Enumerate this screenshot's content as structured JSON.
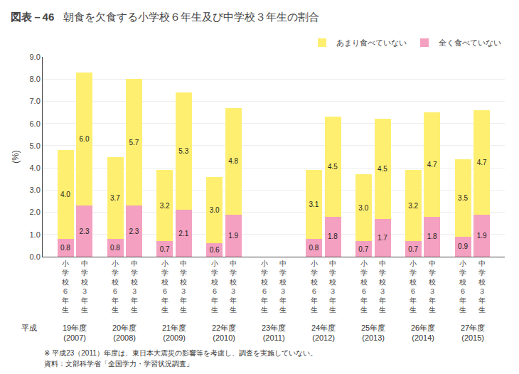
{
  "chart_data": {
    "type": "bar",
    "title": "朝食を欠食する小学校６年生及び中学校３年生の割合",
    "ylabel": "(%)",
    "categories": [
      [
        "19年度\n(2007)",
        "小\n学\n校\n６\n年\n生"
      ],
      [
        "19年度\n(2007)",
        "中\n学\n校\n３\n年\n生"
      ],
      [
        "20年度\n(2008)",
        "小\n学\n校\n６\n年\n生"
      ],
      [
        "20年度\n(2008)",
        "中\n学\n校\n３\n年\n生"
      ],
      [
        "21年度\n(2009)",
        "小\n学\n校\n６\n年\n生"
      ],
      [
        "21年度\n(2009)",
        "中\n学\n校\n３\n年\n生"
      ],
      [
        "22年度\n(2010)",
        "小\n学\n校\n６\n年\n生"
      ],
      [
        "22年度\n(2010)",
        "中\n学\n校\n３\n年\n生"
      ],
      [
        "23年度\n(2011)",
        "小\n学\n校\n６\n年\n生"
      ],
      [
        "23年度\n(2011)",
        "中\n学\n校\n３\n年\n生"
      ],
      [
        "24年度\n(2012)",
        "小\n学\n校\n６\n年\n生"
      ],
      [
        "24年度\n(2012)",
        "中\n学\n校\n３\n年\n生"
      ],
      [
        "25年度\n(2013)",
        "小\n学\n校\n６\n年\n生"
      ],
      [
        "25年度\n(2013)",
        "中\n学\n校\n３\n年\n生"
      ],
      [
        "26年度\n(2014)",
        "小\n学\n校\n６\n年\n生"
      ],
      [
        "26年度\n(2014)",
        "中\n学\n校\n３\n年\n生"
      ],
      [
        "27年度\n(2015)",
        "小\n学\n校\n６\n年\n生"
      ],
      [
        "27年度\n(2015)",
        "中\n学\n校\n３\n年\n生"
      ]
    ],
    "series": [
      {
        "name": "全く食べていない",
        "color": "#F4A0C0",
        "values": [
          0.8,
          2.3,
          0.8,
          2.3,
          0.7,
          2.1,
          0.6,
          1.9,
          null,
          null,
          0.8,
          1.8,
          0.7,
          1.7,
          0.7,
          1.8,
          0.9,
          1.9
        ],
        "value_labels": [
          "0.8",
          "2.3",
          "0.8",
          "2.3",
          "0.7",
          "2.1",
          "0.6",
          "1.9",
          null,
          null,
          "0.8",
          "1.8",
          "0.7",
          "1.7",
          "0.7",
          "1.8",
          "0.9",
          "1.9"
        ]
      },
      {
        "name": "あまり食べていない",
        "color": "#FFEF70",
        "values": [
          4.0,
          6.0,
          3.7,
          5.7,
          3.2,
          5.3,
          3.0,
          4.8,
          null,
          null,
          3.1,
          4.5,
          3.0,
          4.5,
          3.2,
          4.7,
          3.5,
          4.7
        ],
        "value_labels": [
          "4.0",
          "6.0",
          "3.7",
          "5.7",
          "3.2",
          "5.3",
          "3.0",
          "4.8",
          null,
          null,
          "3.1",
          "4.5",
          "3.0",
          "4.5",
          "3.2",
          "4.7",
          "3.5",
          "4.7"
        ]
      }
    ],
    "ylim": [
      0.0,
      9.0
    ],
    "yticks": [
      {
        "value": 0.0,
        "label": "0.0"
      },
      {
        "value": 1.0,
        "label": "1.0"
      },
      {
        "value": 2.0,
        "label": "2.0"
      },
      {
        "value": 3.0,
        "label": "3.0"
      },
      {
        "value": 4.0,
        "label": "4.0"
      },
      {
        "value": 5.0,
        "label": "5.0"
      },
      {
        "value": 6.0,
        "label": "6.0"
      },
      {
        "value": 7.0,
        "label": "7.0"
      },
      {
        "value": 8.0,
        "label": "8.0"
      },
      {
        "value": 9.0,
        "label": "9.0"
      }
    ],
    "stacked": true,
    "data_labels": true,
    "grid": true,
    "legend": "upper right",
    "annotations": {
      "title_box": "図表－46",
      "year_prefix": "平成",
      "footnotes": [
        "※ 平成23（2011）年度は、東日本大震災の影響等を考慮し、調査を実施していない。",
        "資料：文部科学省「全国学力・学習状況調査」"
      ]
    }
  }
}
